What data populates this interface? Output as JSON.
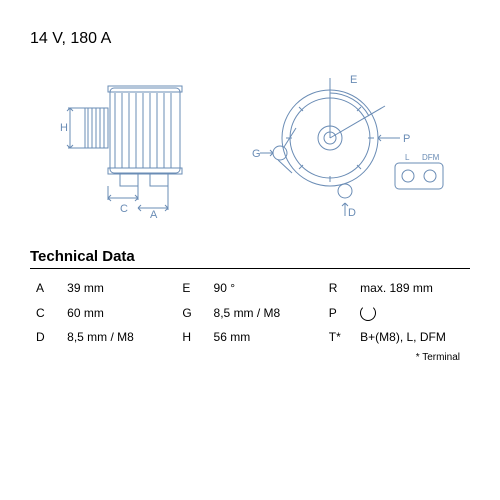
{
  "header": {
    "voltage_current": "14 V, 180 A"
  },
  "section_title": "Technical Data",
  "table": {
    "rows": [
      {
        "k1": "A",
        "v1": "39 mm",
        "k2": "E",
        "v2": "90 °",
        "k3": "R",
        "v3": "max. 189 mm"
      },
      {
        "k1": "C",
        "v1": "60 mm",
        "k2": "G",
        "v2": "8,5 mm / M8",
        "k3": "P",
        "v3": "__ROT__"
      },
      {
        "k1": "D",
        "v1": "8,5 mm / M8",
        "k2": "H",
        "v2": "56 mm",
        "k3": "T*",
        "v3": "B+(M8), L, DFM"
      }
    ]
  },
  "footnote": "* Terminal",
  "diagram": {
    "stroke": "#6a8cb5",
    "labels_left": [
      "H",
      "C",
      "A"
    ],
    "labels_right": [
      "E",
      "P",
      "G",
      "D"
    ],
    "connector_labels": [
      "L",
      "DFM"
    ]
  }
}
